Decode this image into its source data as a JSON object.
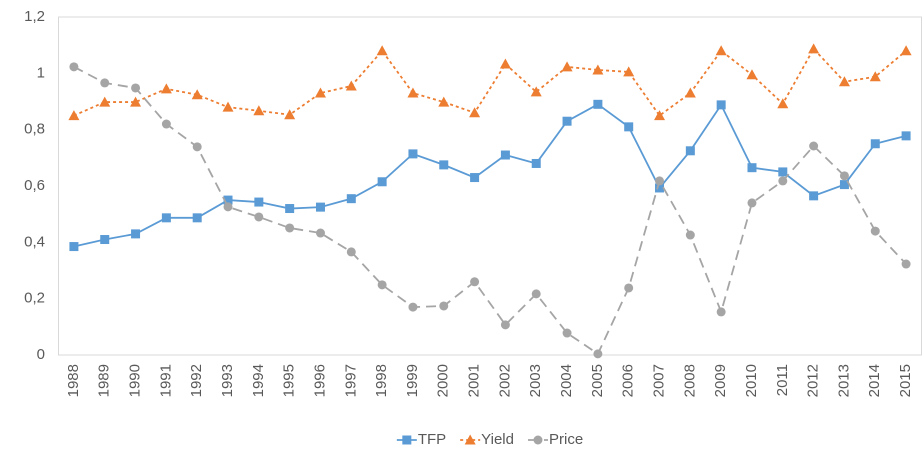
{
  "chart_data": {
    "type": "line",
    "categories": [
      "1988",
      "1989",
      "1990",
      "1991",
      "1992",
      "1993",
      "1994",
      "1995",
      "1996",
      "1997",
      "1998",
      "1999",
      "2000",
      "2001",
      "2002",
      "2003",
      "2004",
      "2005",
      "2006",
      "2007",
      "2008",
      "2009",
      "2010",
      "2011",
      "2012",
      "2013",
      "2014",
      "2015"
    ],
    "series": [
      {
        "name": "TFP",
        "color": "#5b9bd5",
        "dash": "solid",
        "marker": "square",
        "values": [
          0.385,
          0.41,
          0.43,
          0.487,
          0.487,
          0.55,
          0.543,
          0.52,
          0.525,
          0.555,
          0.615,
          0.714,
          0.675,
          0.63,
          0.71,
          0.68,
          0.83,
          0.89,
          0.81,
          0.593,
          0.725,
          0.888,
          0.665,
          0.65,
          0.565,
          0.605,
          0.75,
          0.778
        ]
      },
      {
        "name": "Yield",
        "color": "#ed7d31",
        "dash": "dotted",
        "marker": "triangle",
        "values": [
          0.85,
          0.898,
          0.898,
          0.945,
          0.924,
          0.88,
          0.867,
          0.853,
          0.93,
          0.955,
          1.08,
          0.93,
          0.898,
          0.86,
          1.033,
          0.934,
          1.023,
          1.012,
          1.005,
          0.85,
          0.93,
          1.08,
          0.995,
          0.892,
          1.087,
          0.97,
          0.988,
          1.08
        ]
      },
      {
        "name": "Price",
        "color": "#a5a5a5",
        "dash": "dashed",
        "marker": "circle",
        "values": [
          1.023,
          0.966,
          0.948,
          0.82,
          0.739,
          0.526,
          0.49,
          0.451,
          0.433,
          0.366,
          0.249,
          0.17,
          0.174,
          0.26,
          0.107,
          0.217,
          0.078,
          0.004,
          0.238,
          0.618,
          0.426,
          0.153,
          0.54,
          0.618,
          0.742,
          0.636,
          0.44,
          0.323
        ]
      }
    ],
    "ylim": [
      0,
      1.2
    ],
    "yticks": [
      0,
      {
        "value": 0.2,
        "label": "0,2"
      },
      {
        "value": 0.4,
        "label": "0,4"
      },
      {
        "value": 0.6,
        "label": "0,6"
      },
      {
        "value": 0.8,
        "label": "0,8"
      },
      1,
      {
        "value": 1.2,
        "label": "1,2"
      }
    ],
    "grid": false,
    "legend": "bottom"
  }
}
